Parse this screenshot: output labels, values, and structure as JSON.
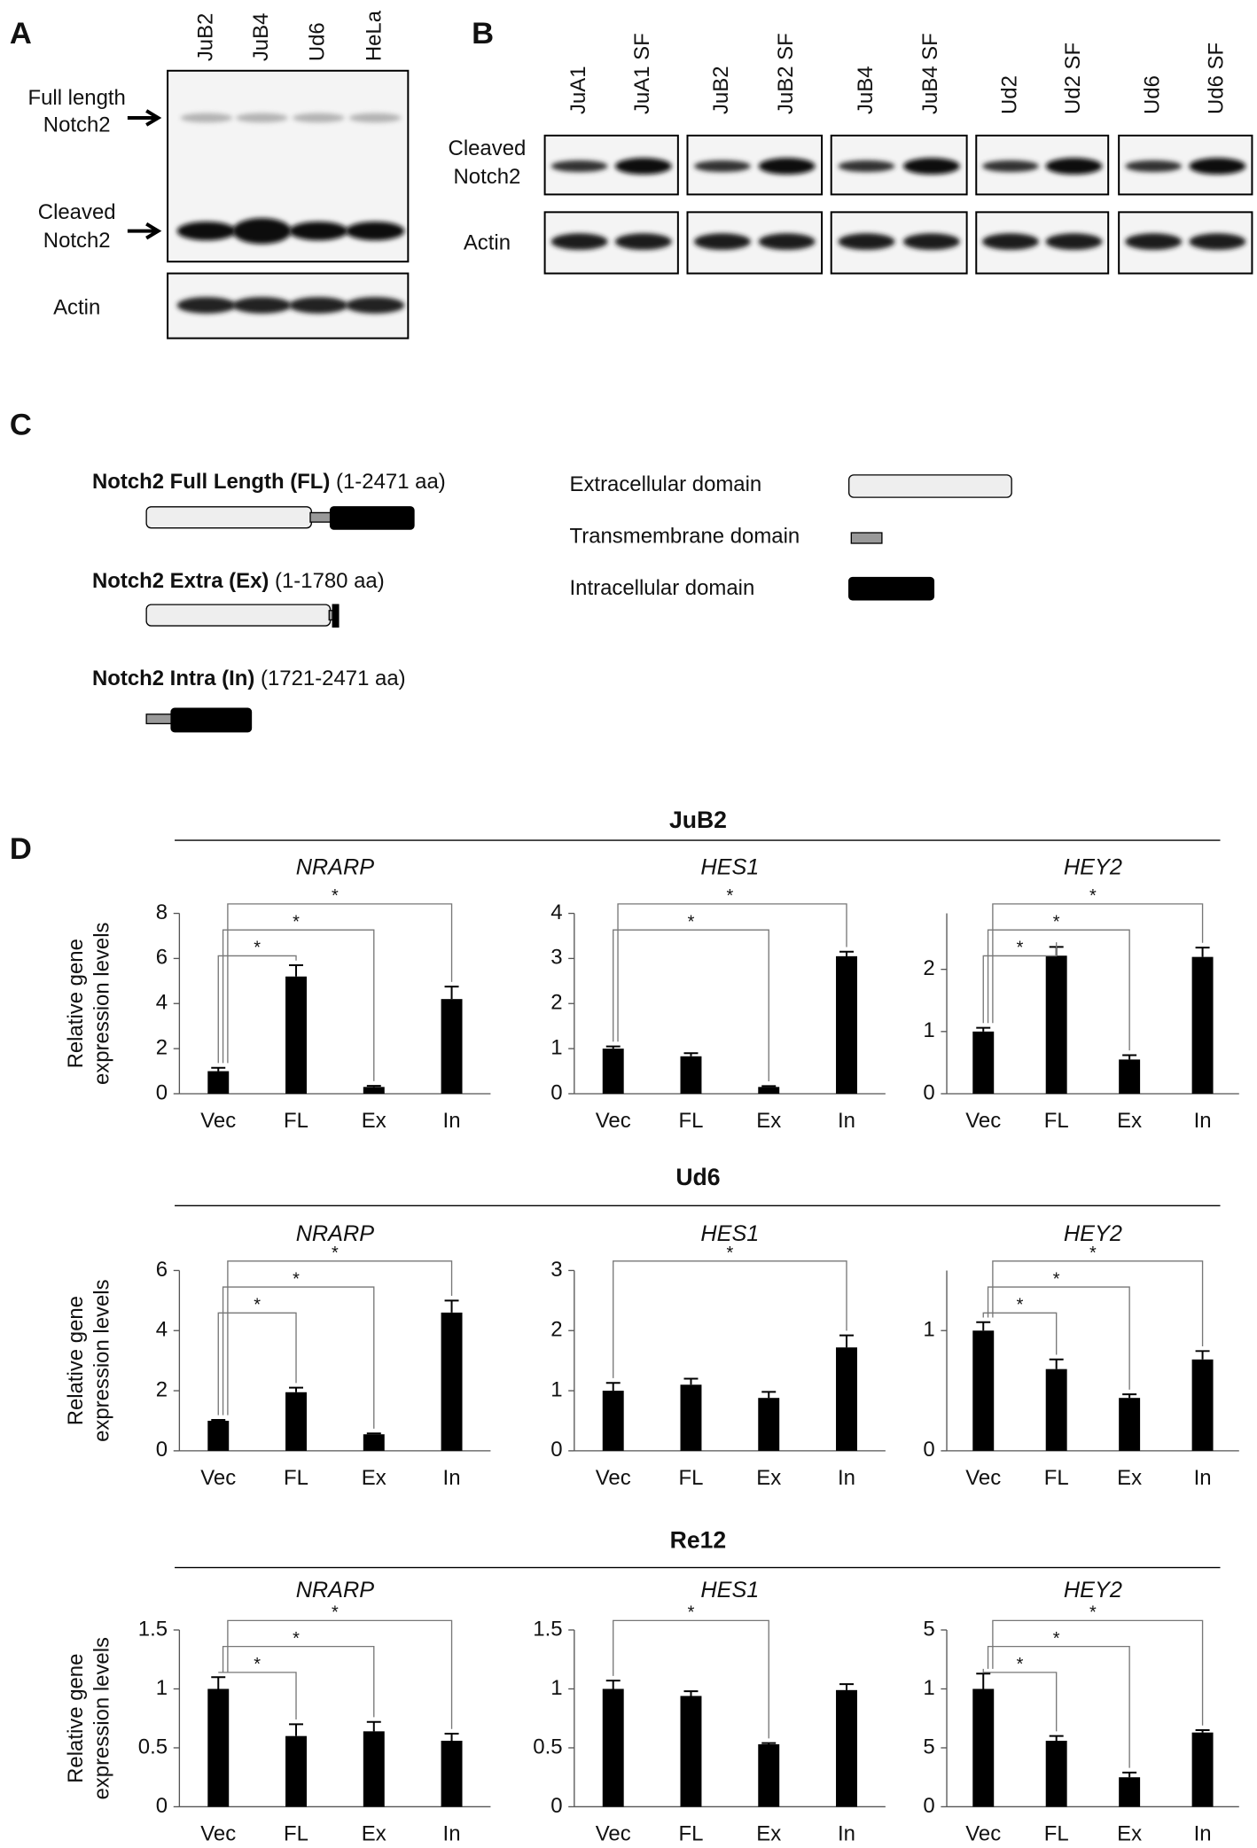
{
  "panel_a": {
    "label": "A",
    "lanes": [
      "JuB2",
      "JuB4",
      "Ud6",
      "HeLa"
    ],
    "full_length_label": [
      "Full length",
      "Notch2"
    ],
    "cleaved_label": [
      "Cleaved",
      "Notch2"
    ],
    "actin_label": "Actin"
  },
  "panel_b": {
    "label": "B",
    "lanes": [
      [
        "JuA1",
        "JuA1 SF"
      ],
      [
        "JuB2",
        "JuB2 SF"
      ],
      [
        "JuB4",
        "JuB4 SF"
      ],
      [
        "Ud2",
        "Ud2 SF"
      ],
      [
        "Ud6",
        "Ud6 SF"
      ]
    ],
    "cleaved_label": [
      "Cleaved",
      "Notch2"
    ],
    "actin_label": "Actin"
  },
  "panel_c": {
    "label": "C",
    "constructs": [
      {
        "name": "Notch2 Full Length (FL)",
        "range": "(1-2471 aa)"
      },
      {
        "name": "Notch2 Extra (Ex)",
        "range": "(1-1780 aa)"
      },
      {
        "name": "Notch2 Intra (In)",
        "range": "(1721-2471 aa)"
      }
    ],
    "legend": [
      "Extracellular domain",
      "Transmembrane domain",
      "Intracellular domain"
    ]
  },
  "panel_d": {
    "label": "D",
    "groups": [
      "JuB2",
      "Ud6",
      "Re12"
    ],
    "y_label": [
      "Relative gene",
      "expression levels"
    ]
  },
  "chart_data": [
    {
      "type": "bar",
      "title": "NRARP",
      "categories": [
        "Vec",
        "FL",
        "Ex",
        "In"
      ],
      "values": [
        1.0,
        5.2,
        0.3,
        4.2
      ],
      "errors": [
        0.15,
        0.5,
        0.05,
        0.55
      ],
      "color": "#000000",
      "ylim": [
        0,
        8
      ],
      "yticks": [
        0,
        2,
        4,
        6,
        8
      ],
      "significance": [
        {
          "from": "Vec",
          "to": "FL",
          "label": "*"
        },
        {
          "from": "Vec",
          "to": "Ex",
          "label": "*"
        },
        {
          "from": "Vec",
          "to": "In",
          "label": "*"
        }
      ]
    },
    {
      "type": "bar",
      "title": "HES1",
      "categories": [
        "Vec",
        "FL",
        "Ex",
        "In"
      ],
      "values": [
        1.0,
        0.83,
        0.15,
        3.05
      ],
      "errors": [
        0.05,
        0.07,
        0.02,
        0.1
      ],
      "color": "#000000",
      "ylim": [
        0,
        4
      ],
      "yticks": [
        0,
        1,
        2,
        3,
        4
      ],
      "significance": [
        {
          "from": "Vec",
          "to": "Ex",
          "label": "*"
        },
        {
          "from": "Vec",
          "to": "In",
          "label": "*"
        }
      ]
    },
    {
      "type": "bar",
      "title": "HEY2",
      "categories": [
        "Vec",
        "FL",
        "Ex",
        "In"
      ],
      "values": [
        1.0,
        2.22,
        0.55,
        2.2
      ],
      "errors": [
        0.06,
        0.14,
        0.07,
        0.15
      ],
      "color": "#000000",
      "ylim": [
        0,
        2.9
      ],
      "yticks": [
        0,
        1,
        2
      ],
      "significance": [
        {
          "from": "Vec",
          "to": "FL",
          "label": "*"
        },
        {
          "from": "Vec",
          "to": "Ex",
          "label": "*"
        },
        {
          "from": "Vec",
          "to": "In",
          "label": "*"
        }
      ]
    },
    {
      "type": "bar",
      "title": "NRARP",
      "categories": [
        "Vec",
        "FL",
        "Ex",
        "In"
      ],
      "values": [
        1.0,
        1.95,
        0.55,
        4.6
      ],
      "errors": [
        0.03,
        0.15,
        0.03,
        0.4
      ],
      "color": "#000000",
      "ylim": [
        0,
        6
      ],
      "yticks": [
        0,
        2,
        4,
        6
      ],
      "significance": [
        {
          "from": "Vec",
          "to": "FL",
          "label": "*"
        },
        {
          "from": "Vec",
          "to": "Ex",
          "label": "*"
        },
        {
          "from": "Vec",
          "to": "In",
          "label": "*"
        }
      ]
    },
    {
      "type": "bar",
      "title": "HES1",
      "categories": [
        "Vec",
        "FL",
        "Ex",
        "In"
      ],
      "values": [
        1.0,
        1.1,
        0.88,
        1.72
      ],
      "errors": [
        0.13,
        0.1,
        0.1,
        0.2
      ],
      "color": "#000000",
      "ylim": [
        0,
        3
      ],
      "yticks": [
        0,
        1,
        2,
        3
      ],
      "significance": [
        {
          "from": "Vec",
          "to": "In",
          "label": "*"
        }
      ]
    },
    {
      "type": "bar",
      "title": "HEY2",
      "categories": [
        "Vec",
        "FL",
        "Ex",
        "In"
      ],
      "values": [
        1.0,
        0.68,
        0.44,
        0.76
      ],
      "errors": [
        0.07,
        0.08,
        0.03,
        0.07
      ],
      "color": "#000000",
      "ylim": [
        0,
        1.5
      ],
      "yticks": [
        0,
        1
      ],
      "significance": [
        {
          "from": "Vec",
          "to": "FL",
          "label": "*"
        },
        {
          "from": "Vec",
          "to": "Ex",
          "label": "*"
        },
        {
          "from": "Vec",
          "to": "In",
          "label": "*"
        }
      ]
    },
    {
      "type": "bar",
      "title": "NRARP",
      "categories": [
        "Vec",
        "FL",
        "Ex",
        "In"
      ],
      "values": [
        1.0,
        0.6,
        0.64,
        0.56
      ],
      "errors": [
        0.1,
        0.1,
        0.08,
        0.06
      ],
      "color": "#000000",
      "ylim": [
        0,
        1.5
      ],
      "yticks": [
        0,
        0.5,
        1,
        1.5
      ],
      "significance": [
        {
          "from": "Vec",
          "to": "FL",
          "label": "*"
        },
        {
          "from": "Vec",
          "to": "Ex",
          "label": "*"
        },
        {
          "from": "Vec",
          "to": "In",
          "label": "*"
        }
      ]
    },
    {
      "type": "bar",
      "title": "HES1",
      "categories": [
        "Vec",
        "FL",
        "Ex",
        "In"
      ],
      "values": [
        1.0,
        0.94,
        0.53,
        0.99
      ],
      "errors": [
        0.07,
        0.04,
        0.01,
        0.05
      ],
      "color": "#000000",
      "ylim": [
        0,
        1.5
      ],
      "yticks": [
        0,
        0.5,
        1,
        1.5
      ],
      "significance": [
        {
          "from": "Vec",
          "to": "Ex",
          "label": "*"
        }
      ]
    },
    {
      "type": "bar",
      "title": "HEY2",
      "categories": [
        "Vec",
        "FL",
        "Ex",
        "In"
      ],
      "values": [
        1.0,
        0.56,
        0.25,
        0.63
      ],
      "errors": [
        0.13,
        0.04,
        0.04,
        0.02
      ],
      "color": "#000000",
      "ylim": [
        0,
        1.5
      ],
      "yticks": [
        0,
        {
          "value": 0.5,
          "label": "5"
        },
        1,
        {
          "value": 1.5,
          "label": "5"
        }
      ],
      "significance": [
        {
          "from": "Vec",
          "to": "FL",
          "label": "*"
        },
        {
          "from": "Vec",
          "to": "Ex",
          "label": "*"
        },
        {
          "from": "Vec",
          "to": "In",
          "label": "*"
        }
      ]
    }
  ]
}
